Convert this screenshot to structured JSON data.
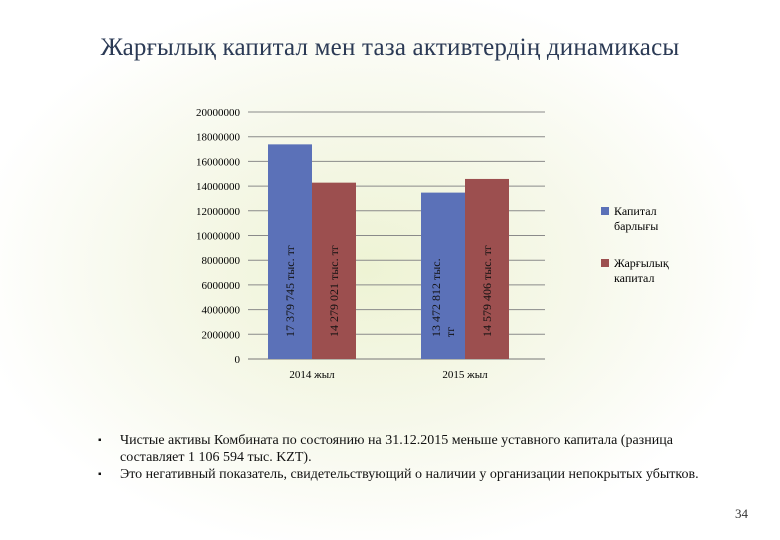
{
  "slide": {
    "title": "Жарғылық капитал мен  таза активтердің динамикасы",
    "page_number": "34"
  },
  "chart_data": {
    "type": "bar",
    "categories": [
      "2014 жыл",
      "2015  жыл"
    ],
    "series": [
      {
        "name": "Капитал барлығы",
        "color": "#5b71b8",
        "values": [
          17379745,
          13472812
        ],
        "data_labels": [
          "17 379 745 тыс. тг",
          "13 472 812 тыс. тг"
        ]
      },
      {
        "name": "Жарғылық капитал",
        "color": "#9c4f4f",
        "values": [
          14279021,
          14579406
        ],
        "data_labels": [
          "14 279 021 тыс. тг",
          "14 579 406 тыс. тг"
        ]
      }
    ],
    "ylim": [
      0,
      20000000
    ],
    "yticks": [
      "0",
      "2000000",
      "4000000",
      "6000000",
      "8000000",
      "10000000",
      "12000000",
      "14000000",
      "16000000",
      "18000000",
      "20000000"
    ],
    "grid": true,
    "legend_position": "right"
  },
  "notes": {
    "items": [
      "Чистые активы Комбината по состоянию на 31.12.2015 меньше уставного капитала (разница составляет 1 106 594 тыс. KZT).",
      "Это негативный показатель, свидетельствующий о наличии у организации непокрытых убытков."
    ],
    "bullet": "▪"
  }
}
